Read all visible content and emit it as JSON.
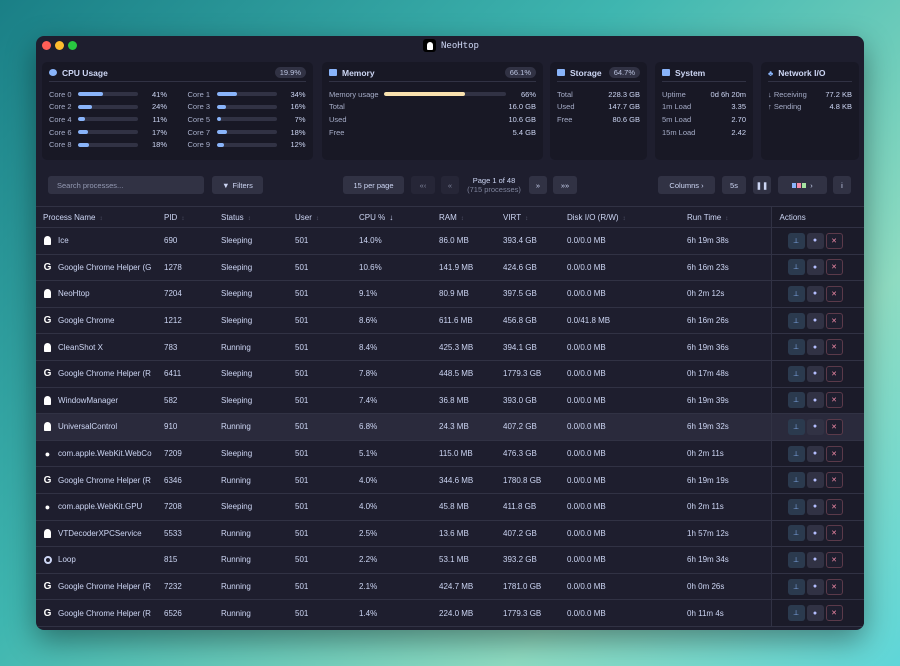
{
  "window": {
    "title": "NeoHtop"
  },
  "cpu": {
    "title": "CPU Usage",
    "total": "19.9%",
    "cores": [
      {
        "label": "Core 0",
        "pct": 41,
        "text": "41%"
      },
      {
        "label": "Core 1",
        "pct": 34,
        "text": "34%"
      },
      {
        "label": "Core 2",
        "pct": 24,
        "text": "24%"
      },
      {
        "label": "Core 3",
        "pct": 16,
        "text": "16%"
      },
      {
        "label": "Core 4",
        "pct": 11,
        "text": "11%"
      },
      {
        "label": "Core 5",
        "pct": 7,
        "text": "7%"
      },
      {
        "label": "Core 6",
        "pct": 17,
        "text": "17%"
      },
      {
        "label": "Core 7",
        "pct": 18,
        "text": "18%"
      },
      {
        "label": "Core 8",
        "pct": 18,
        "text": "18%"
      },
      {
        "label": "Core 9",
        "pct": 12,
        "text": "12%"
      }
    ]
  },
  "memory": {
    "title": "Memory",
    "badge": "66.1%",
    "usage_label": "Memory usage",
    "usage_pct": 66,
    "usage_text": "66%",
    "bar_color": "#f9e2af",
    "rows": [
      {
        "k": "Total",
        "v": "16.0 GB"
      },
      {
        "k": "Used",
        "v": "10.6 GB"
      },
      {
        "k": "Free",
        "v": "5.4 GB"
      }
    ]
  },
  "storage": {
    "title": "Storage",
    "badge": "64.7%",
    "rows": [
      {
        "k": "Total",
        "v": "228.3 GB"
      },
      {
        "k": "Used",
        "v": "147.7 GB"
      },
      {
        "k": "Free",
        "v": "80.6 GB"
      }
    ]
  },
  "system": {
    "title": "System",
    "rows": [
      {
        "k": "Uptime",
        "v": "0d 6h 20m"
      },
      {
        "k": "1m Load",
        "v": "3.35"
      },
      {
        "k": "5m Load",
        "v": "2.70"
      },
      {
        "k": "15m Load",
        "v": "2.42"
      }
    ]
  },
  "network": {
    "title": "Network I/O",
    "rows": [
      {
        "k": "↓ Receiving",
        "v": "77.2 KB"
      },
      {
        "k": "↑ Sending",
        "v": "4.8 KB"
      }
    ]
  },
  "toolbar": {
    "search_placeholder": "Search processes...",
    "filters": "Filters",
    "per_page": "15 per page",
    "first": "«‹",
    "prev": "«",
    "page": "Page 1 of 48",
    "count": "(715 processes)",
    "next": "»",
    "last": "»»",
    "columns": "Columns ›",
    "interval": "5s",
    "pause": "❚❚",
    "theme": "›",
    "info": "i"
  },
  "table": {
    "headers": [
      "Process Name",
      "PID",
      "Status",
      "User",
      "CPU %",
      "RAM",
      "VIRT",
      "Disk I/O (R/W)",
      "Run Time",
      "Actions"
    ],
    "sort_column": "CPU %",
    "sort_dir": "desc",
    "rows": [
      {
        "icon": "ghost",
        "name": "Ice",
        "pid": "690",
        "status": "Sleeping",
        "user": "501",
        "cpu": "14.0%",
        "ram": "86.0 MB",
        "virt": "393.4 GB",
        "disk": "0.0/0.0 MB",
        "runtime": "6h 19m 38s"
      },
      {
        "icon": "google",
        "name": "Google Chrome Helper (G",
        "pid": "1278",
        "status": "Sleeping",
        "user": "501",
        "cpu": "10.6%",
        "ram": "141.9 MB",
        "virt": "424.6 GB",
        "disk": "0.0/0.0 MB",
        "runtime": "6h 16m 23s"
      },
      {
        "icon": "ghost",
        "name": "NeoHtop",
        "pid": "7204",
        "status": "Sleeping",
        "user": "501",
        "cpu": "9.1%",
        "ram": "80.9 MB",
        "virt": "397.5 GB",
        "disk": "0.0/0.0 MB",
        "runtime": "0h 2m 12s"
      },
      {
        "icon": "google",
        "name": "Google Chrome",
        "pid": "1212",
        "status": "Sleeping",
        "user": "501",
        "cpu": "8.6%",
        "ram": "611.6 MB",
        "virt": "456.8 GB",
        "disk": "0.0/41.8 MB",
        "runtime": "6h 16m 26s"
      },
      {
        "icon": "ghost",
        "name": "CleanShot X",
        "pid": "783",
        "status": "Running",
        "user": "501",
        "cpu": "8.4%",
        "ram": "425.3 MB",
        "virt": "394.1 GB",
        "disk": "0.0/0.0 MB",
        "runtime": "6h 19m 36s"
      },
      {
        "icon": "google",
        "name": "Google Chrome Helper (R",
        "pid": "6411",
        "status": "Sleeping",
        "user": "501",
        "cpu": "7.8%",
        "ram": "448.5 MB",
        "virt": "1779.3 GB",
        "disk": "0.0/0.0 MB",
        "runtime": "0h 17m 48s"
      },
      {
        "icon": "ghost",
        "name": "WindowManager",
        "pid": "582",
        "status": "Sleeping",
        "user": "501",
        "cpu": "7.4%",
        "ram": "36.8 MB",
        "virt": "393.0 GB",
        "disk": "0.0/0.0 MB",
        "runtime": "6h 19m 39s"
      },
      {
        "icon": "ghost",
        "name": "UniversalControl",
        "pid": "910",
        "status": "Running",
        "user": "501",
        "cpu": "6.8%",
        "ram": "24.3 MB",
        "virt": "407.2 GB",
        "disk": "0.0/0.0 MB",
        "runtime": "6h 19m 32s",
        "highlight": true
      },
      {
        "icon": "apple",
        "name": "com.apple.WebKit.WebCo",
        "pid": "7209",
        "status": "Sleeping",
        "user": "501",
        "cpu": "5.1%",
        "ram": "115.0 MB",
        "virt": "476.3 GB",
        "disk": "0.0/0.0 MB",
        "runtime": "0h 2m 11s"
      },
      {
        "icon": "google",
        "name": "Google Chrome Helper (R",
        "pid": "6346",
        "status": "Running",
        "user": "501",
        "cpu": "4.0%",
        "ram": "344.6 MB",
        "virt": "1780.8 GB",
        "disk": "0.0/0.0 MB",
        "runtime": "6h 19m 19s"
      },
      {
        "icon": "apple",
        "name": "com.apple.WebKit.GPU",
        "pid": "7208",
        "status": "Sleeping",
        "user": "501",
        "cpu": "4.0%",
        "ram": "45.8 MB",
        "virt": "411.8 GB",
        "disk": "0.0/0.0 MB",
        "runtime": "0h 2m 11s"
      },
      {
        "icon": "ghost",
        "name": "VTDecoderXPCService",
        "pid": "5533",
        "status": "Running",
        "user": "501",
        "cpu": "2.5%",
        "ram": "13.6 MB",
        "virt": "407.2 GB",
        "disk": "0.0/0.0 MB",
        "runtime": "1h 57m 12s"
      },
      {
        "icon": "loop",
        "name": "Loop",
        "pid": "815",
        "status": "Running",
        "user": "501",
        "cpu": "2.2%",
        "ram": "53.1 MB",
        "virt": "393.2 GB",
        "disk": "0.0/0.0 MB",
        "runtime": "6h 19m 34s"
      },
      {
        "icon": "google",
        "name": "Google Chrome Helper (R",
        "pid": "7232",
        "status": "Running",
        "user": "501",
        "cpu": "2.1%",
        "ram": "424.7 MB",
        "virt": "1781.0 GB",
        "disk": "0.0/0.0 MB",
        "runtime": "0h 0m 26s"
      },
      {
        "icon": "google",
        "name": "Google Chrome Helper (R",
        "pid": "6526",
        "status": "Running",
        "user": "501",
        "cpu": "1.4%",
        "ram": "224.0 MB",
        "virt": "1779.3 GB",
        "disk": "0.0/0.0 MB",
        "runtime": "0h 11m 4s"
      }
    ]
  }
}
